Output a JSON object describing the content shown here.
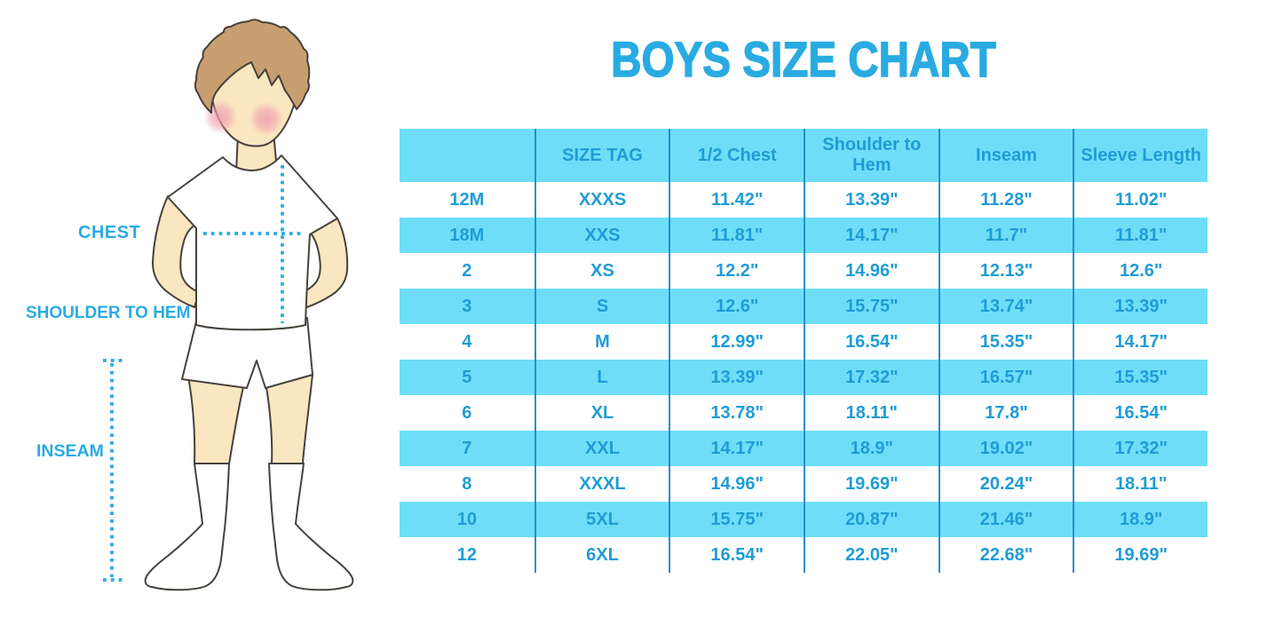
{
  "title": "BOYS SIZE CHART",
  "figure": {
    "labels": {
      "chest": "CHEST",
      "shoulder_to_hem": "SHOULDER TO HEM",
      "inseam": "INSEAM"
    }
  },
  "colors": {
    "accent": "#29ABE2",
    "row_cyan": "#6EDEF8",
    "divider": "#2490C2",
    "table_text": "#1F9CD6",
    "skin": "#FAE6C0",
    "hair": "#C79F70",
    "cheek": "#F09CB0",
    "outline": "#46413B"
  },
  "chart_data": {
    "type": "table",
    "title": "BOYS SIZE CHART",
    "columns": [
      "",
      "SIZE TAG",
      "1/2 Chest",
      "Shoulder to Hem",
      "Inseam",
      "Sleeve Length"
    ],
    "rows": [
      [
        "12M",
        "XXXS",
        "11.42\"",
        "13.39\"",
        "11.28\"",
        "11.02\""
      ],
      [
        "18M",
        "XXS",
        "11.81\"",
        "14.17\"",
        "11.7\"",
        "11.81\""
      ],
      [
        "2",
        "XS",
        "12.2\"",
        "14.96\"",
        "12.13\"",
        "12.6\""
      ],
      [
        "3",
        "S",
        "12.6\"",
        "15.75\"",
        "13.74\"",
        "13.39\""
      ],
      [
        "4",
        "M",
        "12.99\"",
        "16.54\"",
        "15.35\"",
        "14.17\""
      ],
      [
        "5",
        "L",
        "13.39\"",
        "17.32\"",
        "16.57\"",
        "15.35\""
      ],
      [
        "6",
        "XL",
        "13.78\"",
        "18.11\"",
        "17.8\"",
        "16.54\""
      ],
      [
        "7",
        "XXL",
        "14.17\"",
        "18.9\"",
        "19.02\"",
        "17.32\""
      ],
      [
        "8",
        "XXXL",
        "14.96\"",
        "19.69\"",
        "20.24\"",
        "18.11\""
      ],
      [
        "10",
        "5XL",
        "15.75\"",
        "20.87\"",
        "21.46\"",
        "18.9\""
      ],
      [
        "12",
        "6XL",
        "16.54\"",
        "22.05\"",
        "22.68\"",
        "19.69\""
      ]
    ]
  }
}
